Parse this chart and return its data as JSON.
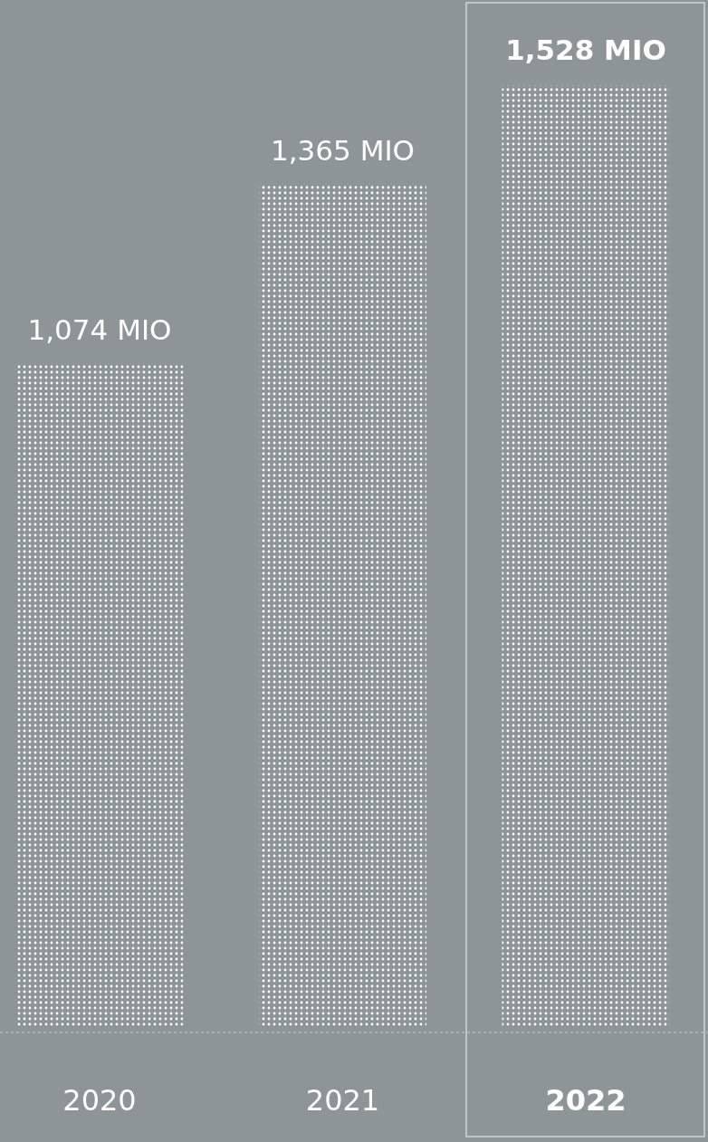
{
  "chart_data": {
    "type": "bar",
    "categories": [
      "2020",
      "2021",
      "2022"
    ],
    "values": [
      1074,
      1365,
      1528
    ],
    "value_labels": [
      "1,074 MIO",
      "1,365 MIO",
      "1,528 MIO"
    ],
    "color": "#ffffff"
  }
}
